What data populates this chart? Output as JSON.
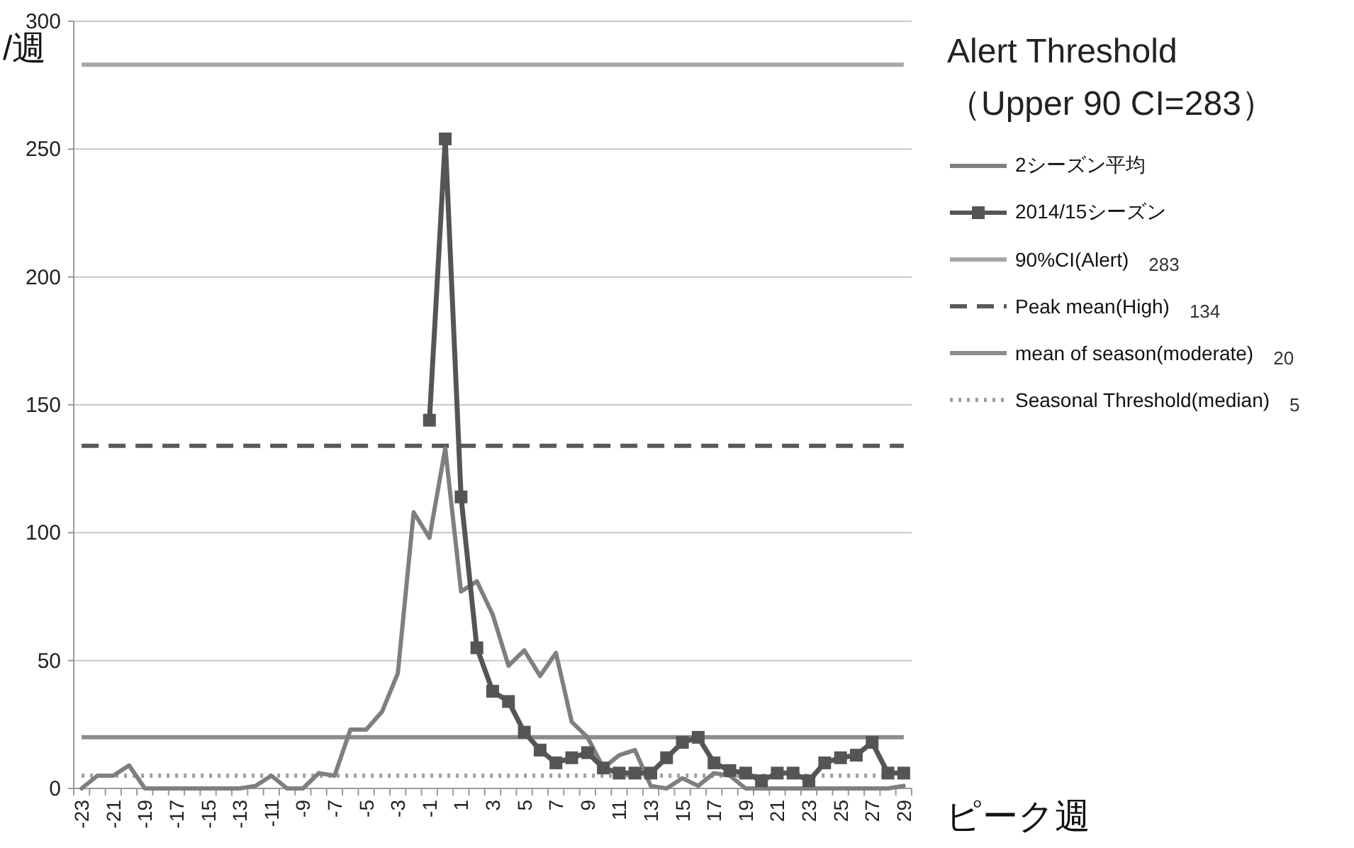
{
  "chart_data": {
    "type": "line",
    "ylabel": "/週",
    "xlabel": "ピーク週",
    "legend_title": "Alert Threshold（Upper 90 CI=283）",
    "categories": [
      "-23",
      null,
      "-21",
      null,
      "-19",
      null,
      "-17",
      null,
      "-15",
      null,
      "-13",
      null,
      "-11",
      null,
      "-9",
      null,
      "-7",
      null,
      "-5",
      null,
      "-3",
      null,
      "-1",
      null,
      "1",
      null,
      "3",
      null,
      "5",
      null,
      "7",
      null,
      "9",
      null,
      "11",
      null,
      "13",
      null,
      "15",
      null,
      "17",
      null,
      "19",
      null,
      "21",
      null,
      "23",
      null,
      "25",
      null,
      "27",
      null,
      "29"
    ],
    "series": [
      {
        "name": "2シーズン平均",
        "color": "#7f7f7f",
        "marker": "none",
        "values": [
          0,
          5,
          5,
          9,
          0,
          0,
          0,
          0,
          0,
          0,
          0,
          1,
          5,
          0,
          0,
          6,
          5,
          23,
          23,
          30,
          45,
          108,
          98,
          133,
          77,
          81,
          68,
          48,
          54,
          44,
          53,
          26,
          20,
          8,
          13,
          15,
          1,
          0,
          4,
          1,
          6,
          5,
          0,
          0,
          0,
          0,
          0,
          0,
          0,
          0,
          0,
          0,
          1
        ]
      },
      {
        "name": "2014/15シーズン",
        "color": "#555555",
        "marker": "square",
        "values": [
          null,
          null,
          null,
          null,
          null,
          null,
          null,
          null,
          null,
          null,
          null,
          null,
          null,
          null,
          null,
          null,
          null,
          null,
          null,
          null,
          null,
          null,
          144,
          254,
          114,
          55,
          38,
          34,
          22,
          15,
          10,
          12,
          14,
          8,
          6,
          6,
          6,
          12,
          18,
          20,
          10,
          7,
          6,
          3,
          6,
          6,
          3,
          10,
          12,
          13,
          18,
          6,
          6
        ]
      }
    ],
    "ref_lines": [
      {
        "axis": "y",
        "value": 283,
        "label": "90%CI(Alert)",
        "color": "#a6a6a6",
        "line_style": "solid"
      },
      {
        "axis": "y",
        "value": 134,
        "label": "Peak mean(High)",
        "color": "#595959",
        "line_style": "dashed"
      },
      {
        "axis": "y",
        "value": 20,
        "label": "mean of season(moderate)",
        "color": "#8c8c8c",
        "line_style": "solid"
      },
      {
        "axis": "y",
        "value": 5,
        "label": "Seasonal Threshold(median)",
        "color": "#a0a0a0",
        "line_style": "dotted"
      }
    ],
    "ylim": [
      0,
      300
    ],
    "yticks": [
      0,
      50,
      100,
      150,
      200,
      250,
      300
    ],
    "annotations": [
      "283",
      "134",
      "20",
      "5"
    ],
    "grid": "y",
    "legend": "right"
  }
}
